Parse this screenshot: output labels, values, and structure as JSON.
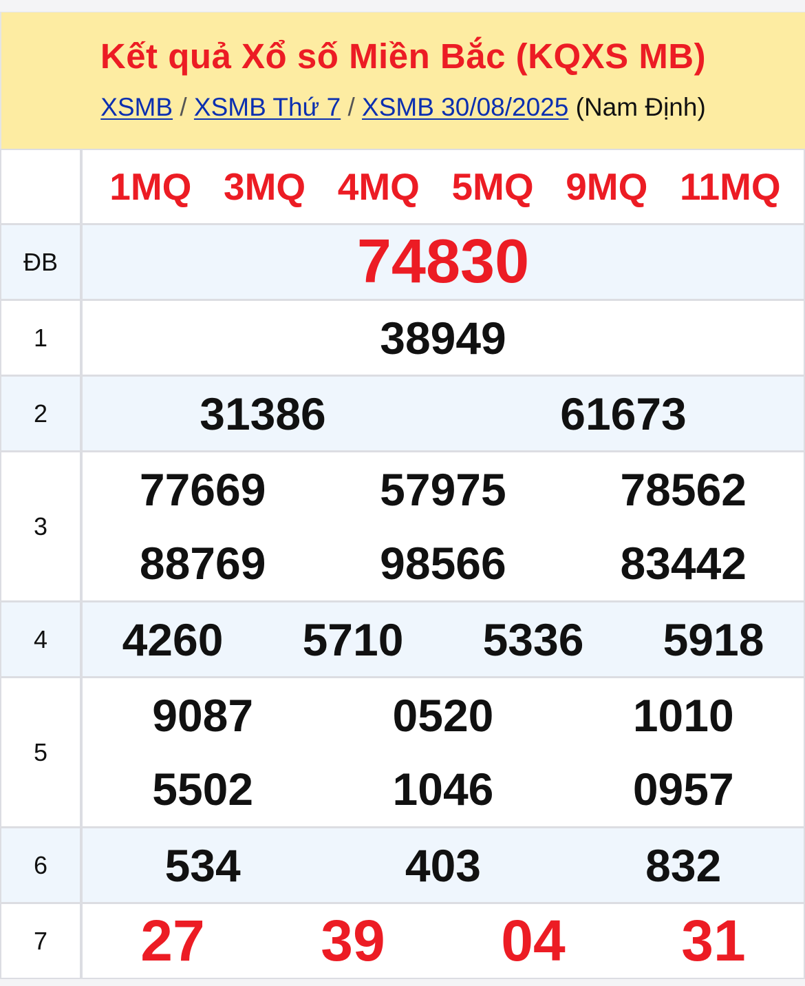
{
  "header": {
    "title": "Kết quả Xổ số Miền Bắc (KQXS MB)",
    "breadcrumbs": [
      "XSMB",
      "XSMB Thứ 7",
      "XSMB 30/08/2025"
    ],
    "separator": "/",
    "province": "(Nam Định)"
  },
  "codes": [
    "1MQ",
    "3MQ",
    "4MQ",
    "5MQ",
    "9MQ",
    "11MQ"
  ],
  "prizes": [
    {
      "label": "ĐB",
      "numbers": [
        "74830"
      ]
    },
    {
      "label": "1",
      "numbers": [
        "38949"
      ]
    },
    {
      "label": "2",
      "numbers": [
        "31386",
        "61673"
      ]
    },
    {
      "label": "3",
      "numbers": [
        "77669",
        "57975",
        "78562",
        "88769",
        "98566",
        "83442"
      ]
    },
    {
      "label": "4",
      "numbers": [
        "4260",
        "5710",
        "5336",
        "5918"
      ]
    },
    {
      "label": "5",
      "numbers": [
        "9087",
        "0520",
        "1010",
        "5502",
        "1046",
        "0957"
      ]
    },
    {
      "label": "6",
      "numbers": [
        "534",
        "403",
        "832"
      ]
    },
    {
      "label": "7",
      "numbers": [
        "27",
        "39",
        "04",
        "31"
      ]
    }
  ],
  "colors": {
    "accent": "#ec1c24",
    "link": "#0b2fb0",
    "header_bg": "#fdeca2",
    "alt_row_bg": "#eff6fd"
  }
}
